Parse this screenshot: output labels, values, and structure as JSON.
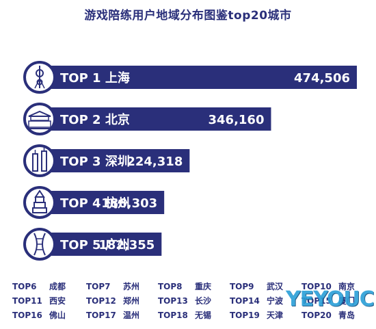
{
  "title": "游戏陪练用户地域分布图鉴top20城市",
  "chart_data": {
    "type": "bar",
    "orientation": "horizontal",
    "title": "游戏陪练用户地域分布图鉴top20城市",
    "bar_color": "#2a2f7a",
    "categories": [
      "TOP 1 上海",
      "TOP 2 北京",
      "TOP 3 深圳",
      "TOP 4 杭州",
      "TOP 5 广州"
    ],
    "values": [
      474506,
      346160,
      224318,
      186303,
      182355
    ],
    "value_labels": [
      "474,506",
      "346,160",
      "224,318",
      "186,303",
      "182,355"
    ],
    "icons": [
      "oriental-pearl-tower-icon",
      "tiananmen-icon",
      "shenzhen-towers-icon",
      "hangzhou-pagoda-icon",
      "canton-tower-icon"
    ]
  },
  "rest_rows": [
    [
      {
        "rank": "TOP6",
        "city": "成都"
      },
      {
        "rank": "TOP7",
        "city": "苏州"
      },
      {
        "rank": "TOP8",
        "city": "重庆"
      },
      {
        "rank": "TOP9",
        "city": "武汉"
      },
      {
        "rank": "TOP10",
        "city": "南京"
      }
    ],
    [
      {
        "rank": "TOP11",
        "city": "西安"
      },
      {
        "rank": "TOP12",
        "city": "郑州"
      },
      {
        "rank": "TOP13",
        "city": "长沙"
      },
      {
        "rank": "TOP14",
        "city": "宁波"
      },
      {
        "rank": "TOP15",
        "city": "厦门"
      }
    ],
    [
      {
        "rank": "TOP16",
        "city": "佛山"
      },
      {
        "rank": "TOP17",
        "city": "温州"
      },
      {
        "rank": "TOP18",
        "city": "无锡"
      },
      {
        "rank": "TOP19",
        "city": "天津"
      },
      {
        "rank": "TOP20",
        "city": "青岛"
      }
    ]
  ],
  "watermark": "YEYOUC"
}
